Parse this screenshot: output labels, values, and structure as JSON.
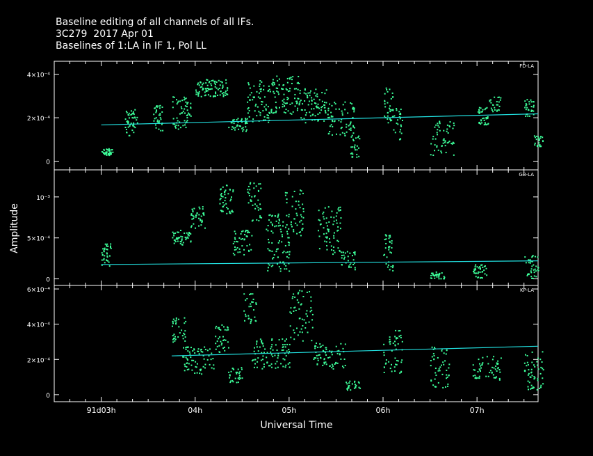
{
  "header": {
    "line1": "Baseline editing of all channels of all IFs.",
    "line2": "3C279  2017 Apr 01",
    "line3": "Baselines of 1:LA in IF 1, Pol LL"
  },
  "colors": {
    "background": "#000000",
    "points": "#3dff9a",
    "fit_line": "#22e0e0",
    "frame": "#ffffff"
  },
  "chart_data": {
    "type": "scatter",
    "xlabel": "Universal Time",
    "ylabel": "Amplitude",
    "xlim": [
      2.5,
      7.65
    ],
    "xticks": [
      {
        "v": 3,
        "label": "91d03h"
      },
      {
        "v": 4,
        "label": "04h"
      },
      {
        "v": 5,
        "label": "05h"
      },
      {
        "v": 6,
        "label": "06h"
      },
      {
        "v": 7,
        "label": "07h"
      }
    ],
    "panels": [
      {
        "name": "FD-LA",
        "ylim": [
          -4e-05,
          0.00046
        ],
        "yticks": [
          {
            "v": 0,
            "label": "0"
          },
          {
            "v": 0.0002,
            "label": "2×10⁻⁴"
          },
          {
            "v": 0.0004,
            "label": "4×10⁻⁴"
          }
        ],
        "fit": {
          "x": [
            3.0,
            7.65
          ],
          "y": [
            0.000167,
            0.000218
          ]
        },
        "clusters": [
          {
            "x": [
              3.0,
              3.12
            ],
            "y": [
              3e-05,
              6e-05
            ],
            "n": 40
          },
          {
            "x": [
              3.25,
              3.38
            ],
            "y": [
              0.00012,
              0.00024
            ],
            "n": 45
          },
          {
            "x": [
              3.55,
              3.65
            ],
            "y": [
              0.00014,
              0.00026
            ],
            "n": 35
          },
          {
            "x": [
              3.75,
              3.95
            ],
            "y": [
              0.00015,
              0.0003
            ],
            "n": 60
          },
          {
            "x": [
              4.0,
              4.35
            ],
            "y": [
              0.0003,
              0.00038
            ],
            "n": 90
          },
          {
            "x": [
              4.35,
              4.55
            ],
            "y": [
              0.00014,
              0.0002
            ],
            "n": 45
          },
          {
            "x": [
              4.55,
              4.8
            ],
            "y": [
              0.00018,
              0.00038
            ],
            "n": 70
          },
          {
            "x": [
              4.8,
              5.1
            ],
            "y": [
              0.00022,
              0.0004
            ],
            "n": 90
          },
          {
            "x": [
              5.1,
              5.4
            ],
            "y": [
              0.00018,
              0.00034
            ],
            "n": 80
          },
          {
            "x": [
              5.4,
              5.7
            ],
            "y": [
              0.00012,
              0.00028
            ],
            "n": 70
          },
          {
            "x": [
              5.65,
              5.75
            ],
            "y": [
              2e-05,
              0.00012
            ],
            "n": 25
          },
          {
            "x": [
              6.0,
              6.1
            ],
            "y": [
              0.00018,
              0.00034
            ],
            "n": 35
          },
          {
            "x": [
              6.1,
              6.2
            ],
            "y": [
              0.0001,
              0.00026
            ],
            "n": 25
          },
          {
            "x": [
              6.5,
              6.75
            ],
            "y": [
              3e-05,
              0.0002
            ],
            "n": 55
          },
          {
            "x": [
              7.0,
              7.12
            ],
            "y": [
              0.00017,
              0.00025
            ],
            "n": 35
          },
          {
            "x": [
              7.12,
              7.25
            ],
            "y": [
              0.00023,
              0.0003
            ],
            "n": 25
          },
          {
            "x": [
              7.5,
              7.6
            ],
            "y": [
              0.00021,
              0.00029
            ],
            "n": 30
          },
          {
            "x": [
              7.6,
              7.7
            ],
            "y": [
              7e-05,
              0.00012
            ],
            "n": 25
          }
        ]
      },
      {
        "name": "GB-LA",
        "ylim": [
          -8e-05,
          0.00133
        ],
        "yticks": [
          {
            "v": 0,
            "label": "0"
          },
          {
            "v": 0.0005,
            "label": "5×10⁻⁴"
          },
          {
            "v": 0.001,
            "label": "10⁻³"
          }
        ],
        "fit": {
          "x": [
            3.0,
            7.65
          ],
          "y": [
            0.000175,
            0.00022
          ]
        },
        "clusters": [
          {
            "x": [
              3.0,
              3.1
            ],
            "y": [
              0.00015,
              0.00045
            ],
            "n": 35
          },
          {
            "x": [
              3.75,
              3.95
            ],
            "y": [
              0.00042,
              0.0006
            ],
            "n": 45
          },
          {
            "x": [
              3.95,
              4.1
            ],
            "y": [
              0.0006,
              0.0009
            ],
            "n": 40
          },
          {
            "x": [
              4.25,
              4.4
            ],
            "y": [
              0.0008,
              0.00115
            ],
            "n": 45
          },
          {
            "x": [
              4.4,
              4.6
            ],
            "y": [
              0.0003,
              0.0006
            ],
            "n": 45
          },
          {
            "x": [
              4.55,
              4.7
            ],
            "y": [
              0.0007,
              0.0012
            ],
            "n": 40
          },
          {
            "x": [
              4.75,
              5.0
            ],
            "y": [
              0.0001,
              0.0008
            ],
            "n": 90
          },
          {
            "x": [
              4.95,
              5.15
            ],
            "y": [
              0.0005,
              0.00115
            ],
            "n": 45
          },
          {
            "x": [
              5.3,
              5.55
            ],
            "y": [
              0.0003,
              0.0009
            ],
            "n": 70
          },
          {
            "x": [
              5.55,
              5.7
            ],
            "y": [
              0.00012,
              0.00035
            ],
            "n": 30
          },
          {
            "x": [
              6.0,
              6.1
            ],
            "y": [
              0.0001,
              0.00055
            ],
            "n": 35
          },
          {
            "x": [
              6.5,
              6.65
            ],
            "y": [
              1e-05,
              0.0001
            ],
            "n": 35
          },
          {
            "x": [
              6.95,
              7.1
            ],
            "y": [
              1e-05,
              0.00018
            ],
            "n": 35
          },
          {
            "x": [
              7.5,
              7.65
            ],
            "y": [
              1e-05,
              0.0003
            ],
            "n": 40
          }
        ]
      },
      {
        "name": "KP-LA",
        "ylim": [
          -4e-05,
          0.00062
        ],
        "yticks": [
          {
            "v": 0,
            "label": "0"
          },
          {
            "v": 0.0002,
            "label": "2×10⁻⁴"
          },
          {
            "v": 0.0004,
            "label": "4×10⁻⁴"
          },
          {
            "v": 0.0006,
            "label": "6×10⁻⁴"
          }
        ],
        "fit": {
          "x": [
            3.75,
            7.65
          ],
          "y": [
            0.00022,
            0.000275
          ]
        },
        "clusters": [
          {
            "x": [
              3.75,
              3.9
            ],
            "y": [
              0.0003,
              0.00044
            ],
            "n": 35
          },
          {
            "x": [
              3.85,
              4.2
            ],
            "y": [
              0.00012,
              0.00028
            ],
            "n": 70
          },
          {
            "x": [
              4.2,
              4.35
            ],
            "y": [
              0.00024,
              0.0004
            ],
            "n": 35
          },
          {
            "x": [
              4.35,
              4.5
            ],
            "y": [
              7e-05,
              0.00016
            ],
            "n": 30
          },
          {
            "x": [
              4.5,
              4.65
            ],
            "y": [
              0.0004,
              0.00058
            ],
            "n": 30
          },
          {
            "x": [
              4.6,
              5.0
            ],
            "y": [
              0.00015,
              0.00032
            ],
            "n": 90
          },
          {
            "x": [
              5.0,
              5.25
            ],
            "y": [
              0.0003,
              0.0006
            ],
            "n": 55
          },
          {
            "x": [
              5.25,
              5.6
            ],
            "y": [
              0.00015,
              0.0003
            ],
            "n": 70
          },
          {
            "x": [
              5.6,
              5.75
            ],
            "y": [
              3e-05,
              8e-05
            ],
            "n": 25
          },
          {
            "x": [
              6.0,
              6.2
            ],
            "y": [
              0.00012,
              0.00038
            ],
            "n": 50
          },
          {
            "x": [
              6.5,
              6.7
            ],
            "y": [
              4e-05,
              0.00028
            ],
            "n": 50
          },
          {
            "x": [
              6.95,
              7.25
            ],
            "y": [
              8e-05,
              0.00022
            ],
            "n": 55
          },
          {
            "x": [
              7.5,
              7.7
            ],
            "y": [
              3e-05,
              0.00025
            ],
            "n": 55
          }
        ]
      }
    ]
  }
}
